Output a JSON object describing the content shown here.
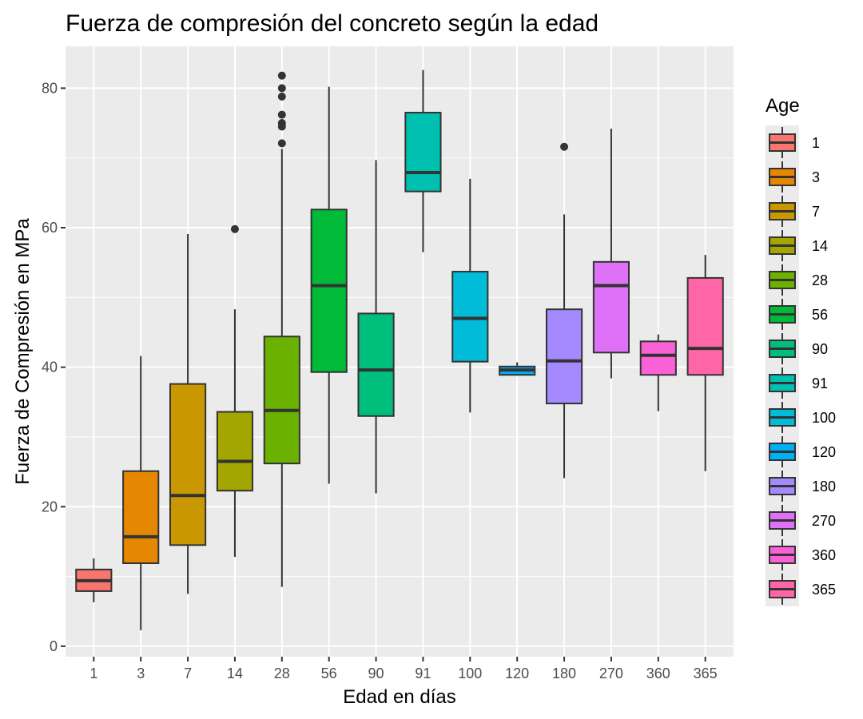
{
  "chart_data": {
    "type": "boxplot",
    "title": "Fuerza de compresión del concreto según la edad",
    "xlabel": "Edad en días",
    "ylabel": "Fuerza de Compresión en MPa",
    "ylim": [
      -1.5,
      86
    ],
    "yticks": [
      0,
      20,
      40,
      60,
      80
    ],
    "grid": true,
    "legend": {
      "title": "Age",
      "placement": "right"
    },
    "categories": [
      "1",
      "3",
      "7",
      "14",
      "28",
      "56",
      "90",
      "91",
      "100",
      "120",
      "180",
      "270",
      "360",
      "365"
    ],
    "boxes": [
      {
        "category": "1",
        "color": "#F8766D",
        "min": 6.3,
        "q1": 7.9,
        "median": 9.4,
        "q3": 11.0,
        "max": 12.6,
        "outliers": []
      },
      {
        "category": "3",
        "color": "#E58700",
        "min": 2.3,
        "q1": 11.9,
        "median": 15.7,
        "q3": 25.1,
        "max": 41.6,
        "outliers": []
      },
      {
        "category": "7",
        "color": "#C99800",
        "min": 7.5,
        "q1": 14.5,
        "median": 21.6,
        "q3": 37.6,
        "max": 59.1,
        "outliers": []
      },
      {
        "category": "14",
        "color": "#A3A500",
        "min": 12.8,
        "q1": 22.3,
        "median": 26.5,
        "q3": 33.6,
        "max": 48.3,
        "outliers": [
          59.8
        ]
      },
      {
        "category": "28",
        "color": "#6BB100",
        "min": 8.5,
        "q1": 26.2,
        "median": 33.8,
        "q3": 44.4,
        "max": 71.3,
        "outliers": [
          72.1,
          74.5,
          75.0,
          76.2,
          78.8,
          80.0,
          81.8
        ]
      },
      {
        "category": "56",
        "color": "#00BA38",
        "min": 23.3,
        "q1": 39.3,
        "median": 51.7,
        "q3": 62.6,
        "max": 80.2,
        "outliers": []
      },
      {
        "category": "90",
        "color": "#00BF7D",
        "min": 21.9,
        "q1": 33.0,
        "median": 39.6,
        "q3": 47.7,
        "max": 69.7,
        "outliers": []
      },
      {
        "category": "91",
        "color": "#00C0AF",
        "min": 56.5,
        "q1": 65.2,
        "median": 67.9,
        "q3": 76.5,
        "max": 82.6,
        "outliers": []
      },
      {
        "category": "100",
        "color": "#00BCD8",
        "min": 33.5,
        "q1": 40.8,
        "median": 47.0,
        "q3": 53.7,
        "max": 67.0,
        "outliers": []
      },
      {
        "category": "120",
        "color": "#00B0F6",
        "min": 38.8,
        "q1": 38.9,
        "median": 39.6,
        "q3": 40.1,
        "max": 40.7,
        "outliers": []
      },
      {
        "category": "180",
        "color": "#A58AFF",
        "min": 24.1,
        "q1": 34.8,
        "median": 40.9,
        "q3": 48.3,
        "max": 61.9,
        "outliers": [
          71.6
        ]
      },
      {
        "category": "270",
        "color": "#DF70F8",
        "min": 38.4,
        "q1": 42.1,
        "median": 51.7,
        "q3": 55.1,
        "max": 74.2,
        "outliers": []
      },
      {
        "category": "360",
        "color": "#FB61D7",
        "min": 33.7,
        "q1": 38.9,
        "median": 41.7,
        "q3": 43.7,
        "max": 44.7,
        "outliers": []
      },
      {
        "category": "365",
        "color": "#FF66A8",
        "min": 25.1,
        "q1": 38.9,
        "median": 42.7,
        "q3": 52.8,
        "max": 56.1,
        "outliers": []
      }
    ]
  }
}
